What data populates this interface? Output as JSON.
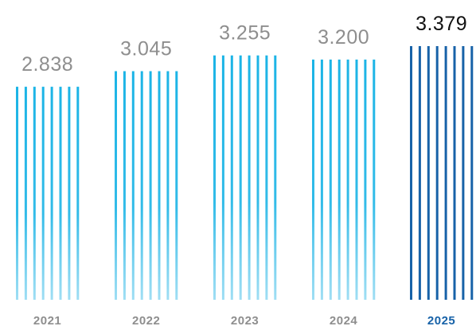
{
  "chart_data": {
    "type": "bar",
    "title": "",
    "xlabel": "",
    "ylabel": "",
    "categories": [
      "2021",
      "2022",
      "2023",
      "2024",
      "2025"
    ],
    "values": [
      2.838,
      3.045,
      3.255,
      3.2,
      3.379
    ],
    "value_labels": [
      "2.838",
      "3.045",
      "3.255",
      "3.200",
      "3.379"
    ],
    "highlight_index": 4,
    "ylim": [
      0,
      3.379
    ],
    "grid": false,
    "legend": "none",
    "bar_style": "vertical-stripes",
    "colors": {
      "bar": "#1bb4e6",
      "bar_highlight": "#1762a8",
      "label": "#8e8e8e",
      "label_highlight": "#111111",
      "category": "#8e8e8e",
      "category_highlight": "#1762a8"
    }
  }
}
